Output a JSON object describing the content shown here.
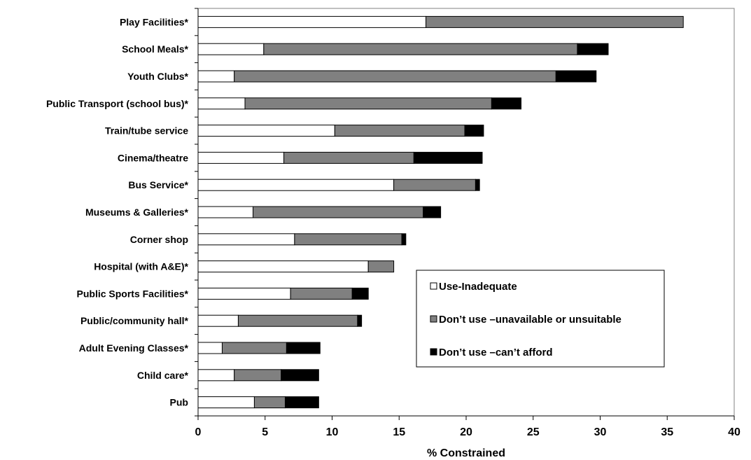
{
  "chart_data": {
    "type": "bar",
    "orientation": "horizontal",
    "stacked": true,
    "categories": [
      "Play Facilities*",
      "School Meals*",
      "Youth Clubs*",
      "Public Transport (school bus)*",
      "Train/tube service",
      "Cinema/theatre",
      "Bus Service*",
      "Museums & Galleries*",
      "Corner shop",
      "Hospital (with A&E)*",
      "Public Sports Facilities*",
      "Public/community hall*",
      "Adult Evening Classes*",
      "Child care*",
      "Pub"
    ],
    "series": [
      {
        "name": "Use-Inadequate",
        "color": "#ffffff",
        "values": [
          17.0,
          4.9,
          2.7,
          3.5,
          10.2,
          6.4,
          14.6,
          4.1,
          7.2,
          12.7,
          6.9,
          3.0,
          1.8,
          2.7,
          4.2
        ]
      },
      {
        "name": "Don’t use –unavailable or unsuitable",
        "color": "#808080",
        "values": [
          19.2,
          23.4,
          24.0,
          18.4,
          9.7,
          9.7,
          6.1,
          12.7,
          8.0,
          1.9,
          4.6,
          8.9,
          4.8,
          3.5,
          2.3
        ]
      },
      {
        "name": "Don’t use –can’t afford",
        "color": "#000000",
        "values": [
          0.0,
          2.3,
          3.0,
          2.2,
          1.4,
          5.1,
          0.3,
          1.3,
          0.3,
          0.0,
          1.2,
          0.3,
          2.5,
          2.8,
          2.5
        ]
      }
    ],
    "xlabel": "% Constrained",
    "ylabel": "",
    "xlim": [
      0,
      40
    ],
    "xticks": [
      0,
      5,
      10,
      15,
      20,
      25,
      30,
      35,
      40
    ],
    "grid": false,
    "legend_position": "lower-right"
  }
}
